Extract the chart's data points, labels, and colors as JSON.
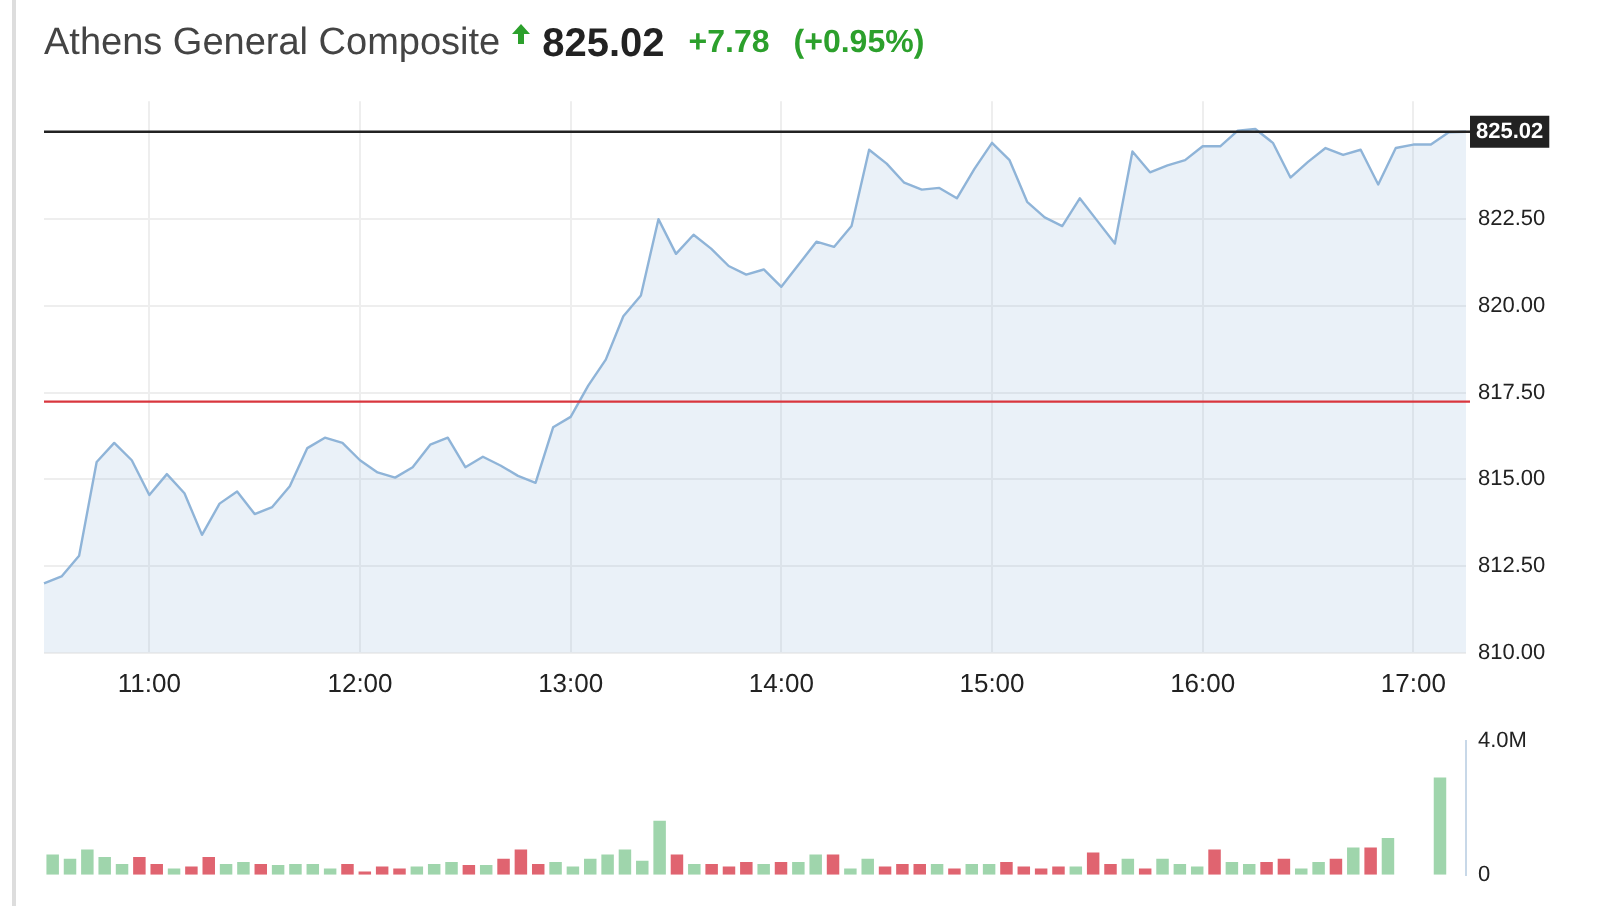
{
  "chart_data": [
    {
      "type": "area",
      "title": "Athens General Composite",
      "annotations": [
        "825.02",
        "+7.78",
        "(+0.95%)"
      ],
      "categories": [
        null,
        null,
        null,
        null,
        null,
        null,
        "11:00",
        null,
        null,
        null,
        null,
        null,
        null,
        null,
        null,
        null,
        null,
        null,
        "12:00",
        null,
        null,
        null,
        null,
        null,
        null,
        null,
        null,
        null,
        null,
        null,
        "13:00",
        null,
        null,
        null,
        null,
        null,
        null,
        null,
        null,
        null,
        null,
        null,
        "14:00",
        null,
        null,
        null,
        null,
        null,
        null,
        null,
        null,
        null,
        null,
        null,
        "15:00",
        null,
        null,
        null,
        null,
        null,
        null,
        null,
        null,
        null,
        null,
        null,
        "16:00",
        null,
        null,
        null,
        null,
        null,
        null,
        null,
        null,
        null,
        null,
        null,
        "17:00",
        null,
        null,
        null
      ],
      "series": [
        {
          "color": "#8fb4d8",
          "values": [
            812.0,
            812.2,
            812.8,
            815.5,
            816.05,
            815.55,
            814.55,
            815.15,
            814.6,
            813.4,
            814.3,
            814.65,
            814.0,
            814.2,
            814.8,
            815.9,
            816.2,
            816.05,
            815.55,
            815.2,
            815.05,
            815.35,
            816.0,
            816.2,
            815.35,
            815.65,
            815.4,
            815.1,
            814.9,
            816.5,
            816.8,
            817.7,
            818.45,
            819.7,
            820.3,
            822.5,
            821.5,
            822.05,
            821.65,
            821.15,
            820.9,
            821.05,
            820.55,
            821.2,
            821.85,
            821.7,
            822.3,
            824.5,
            824.1,
            823.55,
            823.35,
            823.4,
            823.1,
            823.95,
            824.7,
            824.2,
            823.0,
            822.55,
            822.3,
            823.1,
            822.45,
            821.8,
            824.45,
            823.85,
            824.05,
            824.2,
            824.6,
            824.6,
            825.05,
            825.1,
            824.7,
            823.7,
            824.15,
            824.55,
            824.35,
            824.5,
            823.5,
            824.55,
            824.65,
            824.65,
            825.0,
            825.02
          ]
        }
      ],
      "ylim": [
        810,
        825.9
      ],
      "yticks": [
        {
          "value": 810,
          "label": "810.00"
        },
        {
          "value": 812.5,
          "label": "812.50"
        },
        {
          "value": 815,
          "label": "815.00"
        },
        {
          "value": 817.5,
          "label": "817.50"
        },
        {
          "value": 820,
          "label": "820.00"
        },
        {
          "value": 822.5,
          "label": "822.50"
        }
      ],
      "ref_lines": [
        {
          "axis": "y",
          "value": 825.02,
          "label": "825.02",
          "color": "#222222"
        },
        {
          "axis": "y",
          "value": 817.24,
          "color": "#d9363e"
        }
      ],
      "grid": true,
      "legend": false
    },
    {
      "type": "bar",
      "categories": [
        null,
        null,
        null,
        null,
        null,
        null,
        null,
        null,
        null,
        null,
        null,
        null,
        null,
        null,
        null,
        null,
        null,
        null,
        null,
        null,
        null,
        null,
        null,
        null,
        null,
        null,
        null,
        null,
        null,
        null,
        null,
        null,
        null,
        null,
        null,
        null,
        null,
        null,
        null,
        null,
        null,
        null,
        null,
        null,
        null,
        null,
        null,
        null,
        null,
        null,
        null,
        null,
        null,
        null,
        null,
        null,
        null,
        null,
        null,
        null,
        null,
        null,
        null,
        null,
        null,
        null,
        null,
        null,
        null,
        null,
        null,
        null,
        null,
        null,
        null,
        null,
        null,
        null,
        null,
        null,
        null,
        null
      ],
      "values": [
        0.61,
        0.48,
        0.76,
        0.53,
        0.32,
        0.53,
        0.32,
        0.19,
        0.25,
        0.53,
        0.32,
        0.38,
        0.32,
        0.29,
        0.32,
        0.32,
        0.19,
        0.32,
        0.1,
        0.25,
        0.19,
        0.25,
        0.32,
        0.38,
        0.29,
        0.29,
        0.48,
        0.76,
        0.32,
        0.38,
        0.25,
        0.48,
        0.61,
        0.76,
        0.42,
        1.62,
        0.61,
        0.32,
        0.32,
        0.25,
        0.38,
        0.32,
        0.38,
        0.38,
        0.61,
        0.61,
        0.19,
        0.48,
        0.25,
        0.32,
        0.32,
        0.32,
        0.19,
        0.32,
        0.32,
        0.38,
        0.25,
        0.19,
        0.25,
        0.25,
        0.67,
        0.32,
        0.48,
        0.19,
        0.48,
        0.32,
        0.25,
        0.76,
        0.38,
        0.32,
        0.38,
        0.48,
        0.19,
        0.38,
        0.48,
        0.82,
        0.82,
        1.1,
        null,
        null,
        2.91,
        null
      ],
      "colors": [
        "#9fd5ac",
        "#9fd5ac",
        "#9fd5ac",
        "#9fd5ac",
        "#9fd5ac",
        "#e06470",
        "#e06470",
        "#9fd5ac",
        "#e06470",
        "#e06470",
        "#9fd5ac",
        "#9fd5ac",
        "#e06470",
        "#9fd5ac",
        "#9fd5ac",
        "#9fd5ac",
        "#9fd5ac",
        "#e06470",
        "#e06470",
        "#e06470",
        "#e06470",
        "#9fd5ac",
        "#9fd5ac",
        "#9fd5ac",
        "#e06470",
        "#9fd5ac",
        "#e06470",
        "#e06470",
        "#e06470",
        "#9fd5ac",
        "#9fd5ac",
        "#9fd5ac",
        "#9fd5ac",
        "#9fd5ac",
        "#9fd5ac",
        "#9fd5ac",
        "#e06470",
        "#9fd5ac",
        "#e06470",
        "#e06470",
        "#e06470",
        "#9fd5ac",
        "#e06470",
        "#9fd5ac",
        "#9fd5ac",
        "#e06470",
        "#9fd5ac",
        "#9fd5ac",
        "#e06470",
        "#e06470",
        "#e06470",
        "#9fd5ac",
        "#e06470",
        "#9fd5ac",
        "#9fd5ac",
        "#e06470",
        "#e06470",
        "#e06470",
        "#e06470",
        "#9fd5ac",
        "#e06470",
        "#e06470",
        "#9fd5ac",
        "#e06470",
        "#9fd5ac",
        "#9fd5ac",
        "#9fd5ac",
        "#e06470",
        "#9fd5ac",
        "#9fd5ac",
        "#e06470",
        "#e06470",
        "#9fd5ac",
        "#9fd5ac",
        "#e06470",
        "#9fd5ac",
        "#e06470",
        "#9fd5ac",
        "#9fd5ac",
        "#9fd5ac",
        "#9fd5ac",
        "#9fd5ac"
      ],
      "ylim": [
        0,
        4
      ],
      "yticks": [
        {
          "value": 0,
          "label": "0"
        },
        {
          "value": 4,
          "label": "4.0M"
        }
      ],
      "tick_labels": "y",
      "legend": false
    }
  ]
}
